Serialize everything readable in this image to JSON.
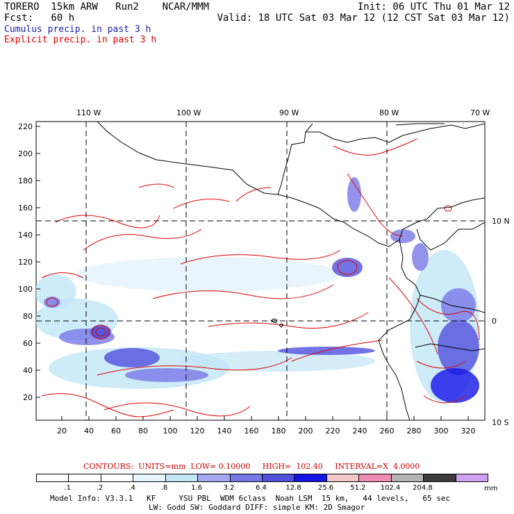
{
  "header": {
    "left1": "TORERO  15km ARW   Run2    NCAR/MMM",
    "left2": "Fcst:   60 h",
    "right1": "Init: 06 UTC Thu 01 Mar 12",
    "right2": "Valid: 18 UTC Sat 03 Mar 12 (12 CST Sat 03 Mar 12)",
    "line_blue": "Cumulus precip. in past 3 h",
    "line_red": "Explicit precip. in past 3 h"
  },
  "axes": {
    "top_lon_labels": [
      "110 W",
      "100 W",
      "90 W",
      "80 W",
      "70 W"
    ],
    "right_lat_labels": [
      "10 N",
      "0",
      "10 S"
    ],
    "left_grid_labels": [
      "220",
      "200",
      "180",
      "160",
      "140",
      "120",
      "100",
      "80",
      "60",
      "40",
      "20"
    ],
    "bottom_grid_labels": [
      "20",
      "40",
      "60",
      "80",
      "100",
      "120",
      "140",
      "160",
      "180",
      "200",
      "220",
      "240",
      "260",
      "280",
      "300",
      "320"
    ]
  },
  "contours_line": "CONTOURS:  UNITS=mm  LOW= 0.10000     HIGH=  102.40     INTERVAL=X  4.0000",
  "legend": {
    "labels": [
      ".1",
      ".2",
      ".4",
      ".8",
      "1.6",
      "3.2",
      "6.4",
      "12.8",
      "25.6",
      "51.2",
      "102.4",
      "204.8"
    ],
    "unit": "mm",
    "colors": [
      "#ffffff",
      "#ffffff",
      "#ffffff",
      "#e6f5fb",
      "#c2e6f6",
      "#a8a8f0",
      "#7878e6",
      "#5050dc",
      "#1414e6",
      "#f2c8c8",
      "#f08cb4",
      "#b4b4b4",
      "#3c3c3c",
      "#d2a0f0"
    ]
  },
  "model_info": {
    "line1": "Model Info: V3.3.1   KF     YSU PBL  WDM 6class  Noah LSM  15 km,   44 levels,   65 sec",
    "line2": "LW: Godd SW: Goddard DIFF: simple KM: 2D Smagor"
  }
}
